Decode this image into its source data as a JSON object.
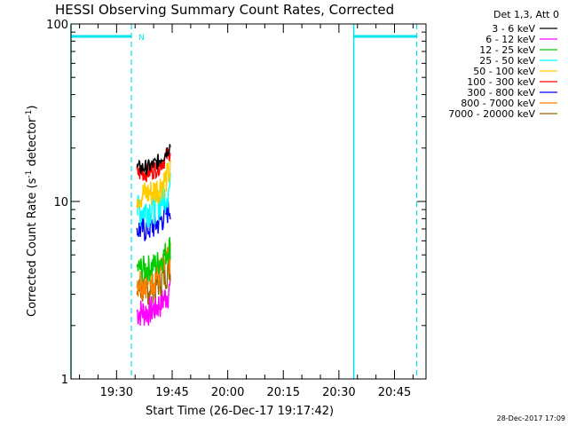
{
  "chart_data": {
    "type": "line",
    "title": "HESSI Observing Summary Count Rates, Corrected",
    "xlabel": "Start Time (26-Dec-17 19:17:42)",
    "ylabel": "Corrected Count Rate (s⁻¹ detector⁻¹)",
    "ylabel_parts": {
      "main": "Corrected Count Rate (s",
      "sup1": "-1",
      "mid": " detector",
      "sup2": "-1",
      "end": ")"
    },
    "yscale": "log",
    "ylim": [
      1,
      100
    ],
    "y_ticks": [
      {
        "value": 1,
        "label": "1"
      },
      {
        "value": 10,
        "label": "10"
      },
      {
        "value": 100,
        "label": "100"
      }
    ],
    "xlim": [
      "19:17:42",
      "20:53:30"
    ],
    "x_ticks": [
      {
        "value": "19:30",
        "label": "19:30"
      },
      {
        "value": "19:45",
        "label": "19:45"
      },
      {
        "value": "20:00",
        "label": "20:00"
      },
      {
        "value": "20:15",
        "label": "20:15"
      },
      {
        "value": "20:30",
        "label": "20:30"
      },
      {
        "value": "20:45",
        "label": "20:45"
      }
    ],
    "legend": {
      "header": "Det 1,3, Att 0",
      "position": "right"
    },
    "series": [
      {
        "name": "3 - 6 keV",
        "color": "#000000",
        "level": 15.5,
        "jitter": 0.1
      },
      {
        "name": "6 - 12 keV",
        "color": "#ff00ff",
        "level": 2.4,
        "jitter": 0.2
      },
      {
        "name": "12 - 25 keV",
        "color": "#00cc00",
        "level": 4.2,
        "jitter": 0.18
      },
      {
        "name": "25 - 50 keV",
        "color": "#00ffff",
        "level": 9.0,
        "jitter": 0.22
      },
      {
        "name": "50 - 100 keV",
        "color": "#ffcc00",
        "level": 11.0,
        "jitter": 0.2
      },
      {
        "name": "100 - 300 keV",
        "color": "#ff0000",
        "level": 14.5,
        "jitter": 0.12
      },
      {
        "name": "300 - 800 keV",
        "color": "#0000ff",
        "level": 7.0,
        "jitter": 0.18
      },
      {
        "name": "800 - 7000 keV",
        "color": "#ff8000",
        "level": 3.6,
        "jitter": 0.22
      },
      {
        "name": "7000 - 20000 keV",
        "color": "#996600",
        "level": 3.2,
        "jitter": 0.2
      }
    ],
    "data_interval": [
      "19:35:30",
      "19:44:30"
    ],
    "night_bars": [
      {
        "start": "19:17:42",
        "end": "19:34:00",
        "label": "N"
      },
      {
        "start": "20:34:00",
        "end": "20:51:00",
        "label": ""
      }
    ],
    "markers": {
      "solid": [
        "19:17:42",
        "20:34:00"
      ],
      "dashed": [
        "19:34:00",
        "20:51:00"
      ]
    },
    "marker_color": "#00e5ee"
  },
  "footer": {
    "timestamp": "28-Dec-2017 17:09"
  }
}
